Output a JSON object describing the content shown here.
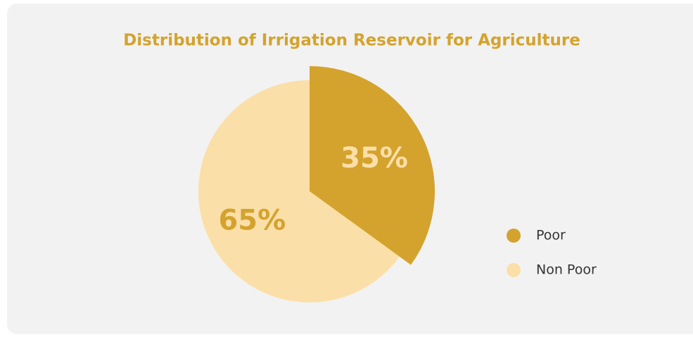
{
  "chart_data": {
    "type": "pie",
    "title": "Distribution of Irrigation Reservoir for Agriculture",
    "categories": [
      "Poor",
      "Non Poor"
    ],
    "values": [
      35,
      65
    ],
    "value_labels": [
      "35%",
      "65%"
    ],
    "colors": [
      "#d4a32e",
      "#fbdfa8"
    ],
    "legend": "right"
  }
}
